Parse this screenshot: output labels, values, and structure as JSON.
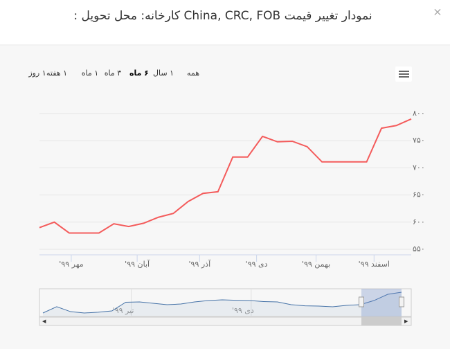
{
  "modal": {
    "title": "نمودار تغییر قیمت China, CRC, FOB کارخانه: محل تحویل :",
    "close": "×"
  },
  "range_selector": [
    "همه",
    "۱ سال",
    "۶ ماه",
    "۳ ماه",
    "۱ ماه",
    "۱ هفته",
    "۱ روز"
  ],
  "chart_data": {
    "type": "line",
    "x": [
      0,
      1,
      2,
      3,
      4,
      5,
      6,
      7,
      8,
      9,
      10,
      11,
      12,
      13,
      14,
      15,
      16,
      17,
      18,
      19,
      20,
      21,
      22,
      23,
      24,
      25
    ],
    "series": [
      {
        "color": "#f45b5b",
        "values": [
          590,
          600,
          580,
          580,
          580,
          597,
          592,
          598,
          609,
          616,
          638,
          653,
          656,
          720,
          720,
          758,
          748,
          749,
          739,
          711,
          711,
          711,
          711,
          773,
          778,
          790
        ]
      }
    ],
    "xlim": [
      0,
      25
    ],
    "xticks": [
      {
        "value": 2.14,
        "label": "مهر ۹۹'"
      },
      {
        "value": 6.57,
        "label": "آبان ۹۹'"
      },
      {
        "value": 10.77,
        "label": "آذر ۹۹'"
      },
      {
        "value": 14.6,
        "label": "دی ۹۹'"
      },
      {
        "value": 18.6,
        "label": "بهمن ۹۹'"
      },
      {
        "value": 22.5,
        "label": "اسفند ۹۹'"
      }
    ],
    "ylim": [
      550,
      800
    ],
    "yticks": [
      {
        "value": 550,
        "label": "۵۵۰"
      },
      {
        "value": 600,
        "label": "۶۰۰"
      },
      {
        "value": 650,
        "label": "۶۵۰"
      },
      {
        "value": 700,
        "label": "۷۰۰"
      },
      {
        "value": 750,
        "label": "۷۵۰"
      },
      {
        "value": 800,
        "label": "۸۰۰"
      }
    ],
    "grid": true,
    "navigator": {
      "color": "#4572a7",
      "xlim": [
        0,
        26
      ],
      "ylim": [
        450,
        820
      ],
      "values": [
        489,
        577,
        508,
        489,
        500,
        518,
        640,
        645,
        625,
        606,
        615,
        645,
        664,
        674,
        668,
        664,
        650,
        645,
        606,
        590,
        586,
        577,
        596,
        606,
        664,
        752,
        781
      ],
      "xticks": [
        {
          "value": 6.4,
          "label": "تیر ۹۹'"
        },
        {
          "value": 15.1,
          "label": "دی ۹۹'"
        }
      ]
    }
  }
}
